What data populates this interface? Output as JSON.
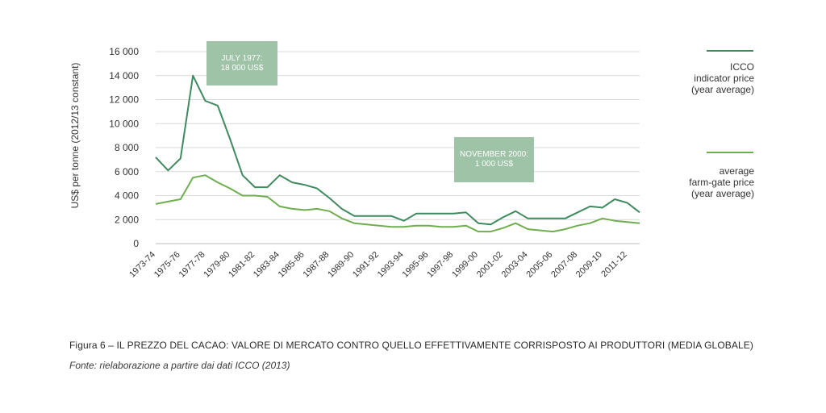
{
  "chart_data": {
    "type": "line",
    "ylabel": "US$ per tonne (2012/13 constant)",
    "ylim": [
      0,
      16000
    ],
    "yticks": [
      0,
      2000,
      4000,
      6000,
      8000,
      10000,
      12000,
      14000,
      16000
    ],
    "ytick_labels": [
      "0",
      "2 000",
      "4 000",
      "6 000",
      "8 000",
      "10 000",
      "12 000",
      "14 000",
      "16 000"
    ],
    "categories": [
      "1973-74",
      "1974-75",
      "1975-76",
      "1976-77",
      "1977-78",
      "1978-79",
      "1979-80",
      "1980-81",
      "1981-82",
      "1982-83",
      "1983-84",
      "1984-85",
      "1985-86",
      "1986-87",
      "1987-88",
      "1988-89",
      "1989-90",
      "1990-91",
      "1991-92",
      "1992-93",
      "1993-94",
      "1994-95",
      "1995-96",
      "1996-97",
      "1997-98",
      "1998-99",
      "1999-00",
      "2000-01",
      "2001-02",
      "2002-03",
      "2003-04",
      "2004-05",
      "2005-06",
      "2006-07",
      "2007-08",
      "2008-09",
      "2009-10",
      "2010-11",
      "2011-12",
      "2012-13"
    ],
    "tick_labels": [
      "1973-74",
      "1975-76",
      "1977-78",
      "1979-80",
      "1981-82",
      "1983-84",
      "1985-86",
      "1987-88",
      "1989-90",
      "1991-92",
      "1993-94",
      "1995-96",
      "1997-98",
      "1999-00",
      "2001-02",
      "2003-04",
      "2005-06",
      "2007-08",
      "2009-10",
      "2011-12"
    ],
    "series": [
      {
        "name": "ICCO indicator price (year average)",
        "color": "#3f8a5f",
        "values": [
          7200,
          6100,
          7100,
          14000,
          11900,
          11500,
          8700,
          5700,
          4700,
          4700,
          5700,
          5100,
          4900,
          4600,
          3800,
          2900,
          2300,
          2300,
          2300,
          2300,
          1900,
          2500,
          2500,
          2500,
          2500,
          2600,
          1700,
          1600,
          2200,
          2700,
          2100,
          2100,
          2100,
          2100,
          2600,
          3100,
          3000,
          3700,
          3400,
          2600
        ]
      },
      {
        "name": "average farm-gate price (year average)",
        "color": "#6fae4f",
        "values": [
          3300,
          3500,
          3700,
          5500,
          5700,
          5100,
          4600,
          4000,
          4000,
          3900,
          3100,
          2900,
          2800,
          2900,
          2700,
          2100,
          1700,
          1600,
          1500,
          1400,
          1400,
          1500,
          1500,
          1400,
          1400,
          1500,
          1000,
          1000,
          1300,
          1700,
          1200,
          1100,
          1000,
          1200,
          1500,
          1700,
          2100,
          1900,
          1800,
          1700
        ]
      }
    ],
    "annotations": [
      {
        "lines": [
          "JULY 1977:",
          "18 000 US$"
        ]
      },
      {
        "lines": [
          "NOVEMBER 2000:",
          "1 000 US$"
        ]
      }
    ]
  },
  "legend": {
    "icco": [
      "ICCO",
      "indicator price",
      "(year average)"
    ],
    "farmgate": [
      "average",
      "farm-gate price",
      "(year average)"
    ]
  },
  "caption": "Figura 6 – IL PREZZO DEL CACAO: VALORE DI MERCATO CONTRO QUELLO EFFETTIVAMENTE CORRISPOSTO AI PRODUTTORI (MEDIA GLOBALE)",
  "source": "Fonte: rielaborazione a partire dai dati ICCO (2013)"
}
